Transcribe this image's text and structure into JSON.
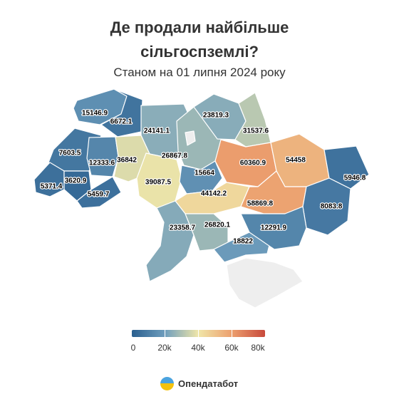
{
  "title_line1": "Де продали найбільше",
  "title_line2": "сільгоспземлі?",
  "subtitle": "Станом на 01 липня 2024 року",
  "brand": "Опендатабот",
  "legend": {
    "labels": [
      "0",
      "20k",
      "40k",
      "60k",
      "80k"
    ],
    "min": 0,
    "max": 80000
  },
  "colors": {
    "low": "#2a5f8f",
    "mid_low": "#6f9ebd",
    "mid": "#f0e6a8",
    "mid_high": "#ec9f6e",
    "high": "#c84a3c",
    "no_data": "#eeeeee"
  },
  "chart_data": {
    "type": "choropleth",
    "unit": "",
    "regions": [
      {
        "name": "Volyn",
        "value": 15146.9,
        "label": "15146.9"
      },
      {
        "name": "Rivne",
        "value": 6672.1,
        "label": "6672.1"
      },
      {
        "name": "Zhytomyr",
        "value": 24141.1,
        "label": "24141.1"
      },
      {
        "name": "Kyiv",
        "value": 26867.8,
        "label": "26867.8"
      },
      {
        "name": "Chernihiv",
        "value": 23819.3,
        "label": "23819.3"
      },
      {
        "name": "Sumy",
        "value": 31537.6,
        "label": "31537.6"
      },
      {
        "name": "Lviv",
        "value": 7603.5,
        "label": "7603.5"
      },
      {
        "name": "Ternopil",
        "value": 12333.6,
        "label": "12333.6"
      },
      {
        "name": "Khmelnytskyi",
        "value": 36842,
        "label": "36842"
      },
      {
        "name": "Vinnytsia",
        "value": 39087.5,
        "label": "39087.5"
      },
      {
        "name": "Cherkasy",
        "value": 15664,
        "label": "15664"
      },
      {
        "name": "Poltava",
        "value": 60360.9,
        "label": "60360.9"
      },
      {
        "name": "Kharkiv",
        "value": 54458,
        "label": "54458"
      },
      {
        "name": "Luhansk",
        "value": 5946.8,
        "label": "5946.8"
      },
      {
        "name": "Zakarpattia",
        "value": 5371.4,
        "label": "5371.4"
      },
      {
        "name": "Ivano-Frankivsk",
        "value": 3620.9,
        "label": "3620.9"
      },
      {
        "name": "Chernivtsi",
        "value": 5459.7,
        "label": "5459.7"
      },
      {
        "name": "Kirovohrad",
        "value": 44142.2,
        "label": "44142.2"
      },
      {
        "name": "Dnipropetrovsk",
        "value": 58869.8,
        "label": "58869.8"
      },
      {
        "name": "Donetsk",
        "value": 8083.8,
        "label": "8083.8"
      },
      {
        "name": "Odesa",
        "value": 23358.7,
        "label": "23358.7"
      },
      {
        "name": "Mykolaiv",
        "value": 26820.1,
        "label": "26820.1"
      },
      {
        "name": "Kherson",
        "value": 18822,
        "label": "18822"
      },
      {
        "name": "Zaporizhzhia",
        "value": 12291.9,
        "label": "12291.9"
      },
      {
        "name": "Kyiv city",
        "value": null,
        "label": ""
      },
      {
        "name": "Crimea",
        "value": null,
        "label": ""
      }
    ]
  }
}
